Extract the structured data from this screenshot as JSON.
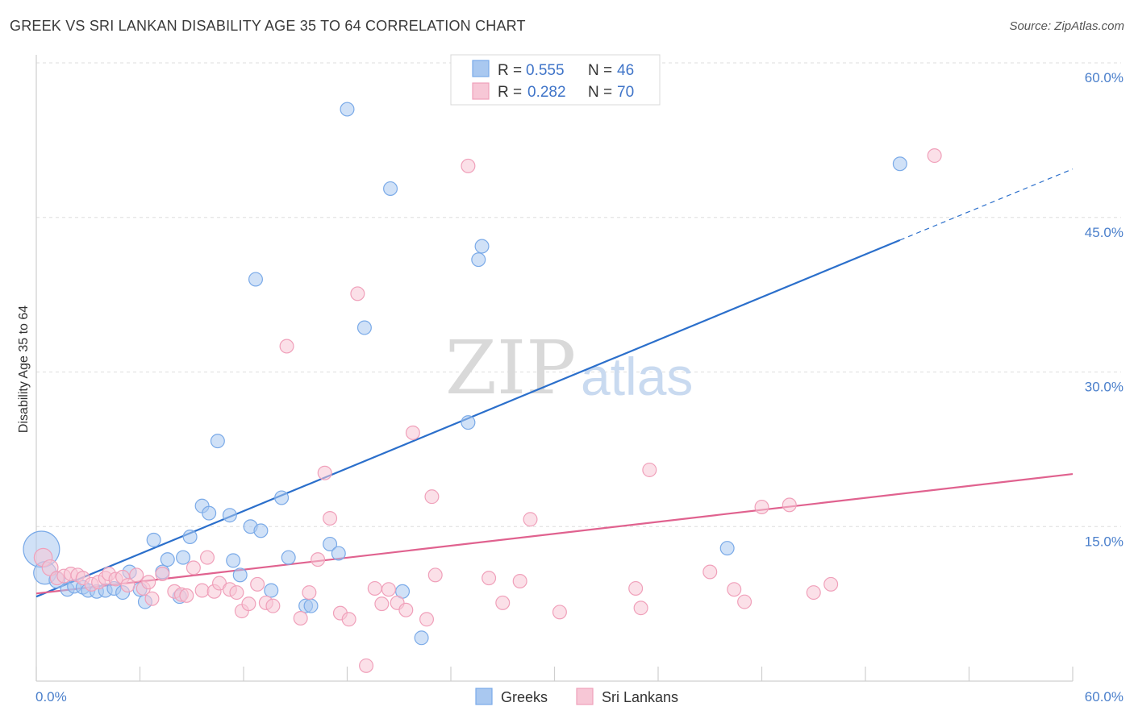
{
  "title": "GREEK VS SRI LANKAN DISABILITY AGE 35 TO 64 CORRELATION CHART",
  "source": "Source: ZipAtlas.com",
  "watermark": {
    "zip": "ZIP",
    "atlas": "atlas"
  },
  "chart_data": {
    "type": "scatter",
    "ylabel": "Disability Age 35 to 64",
    "xlim": [
      0,
      60
    ],
    "ylim": [
      0,
      60
    ],
    "x_tick_labels": [
      "0.0%",
      "60.0%"
    ],
    "y_ticks": [
      {
        "value": 15,
        "label": "15.0%"
      },
      {
        "value": 30,
        "label": "30.0%"
      },
      {
        "value": 45,
        "label": "45.0%"
      },
      {
        "value": 60,
        "label": "60.0%"
      }
    ],
    "grid": "dashed horizontal",
    "legend": {
      "placement": "top-center",
      "rows": [
        {
          "r_label": "R = ",
          "r_value": "0.555",
          "n_label": "N = ",
          "n_value": "46"
        },
        {
          "r_label": "R = ",
          "r_value": "0.282",
          "n_label": "N = ",
          "n_value": "70"
        }
      ]
    },
    "series": [
      {
        "name": "Greeks",
        "color": "#7aaae8",
        "fill": "#a9c8f0",
        "line_color": "#2b6fcb",
        "trend": {
          "x0": 0,
          "y0": 8.2,
          "x1": 50,
          "y1": 42.8,
          "dash_to_x": 60,
          "dash_to_y": 49.7
        },
        "points": [
          [
            0.3,
            12.8,
            32
          ],
          [
            0.5,
            10.5,
            20
          ],
          [
            1.2,
            9.8,
            14
          ],
          [
            1.8,
            8.9,
            12
          ],
          [
            2.2,
            9.2,
            12
          ],
          [
            2.7,
            9.1,
            12
          ],
          [
            3.0,
            8.8,
            12
          ],
          [
            3.5,
            8.7,
            12
          ],
          [
            4.0,
            8.8,
            12
          ],
          [
            4.5,
            9.0,
            12
          ],
          [
            5.0,
            8.6,
            12
          ],
          [
            5.4,
            10.6,
            12
          ],
          [
            6.0,
            8.9,
            12
          ],
          [
            6.3,
            7.7,
            12
          ],
          [
            6.8,
            13.7,
            12
          ],
          [
            7.3,
            10.6,
            12
          ],
          [
            7.6,
            11.8,
            12
          ],
          [
            8.3,
            8.2,
            12
          ],
          [
            8.5,
            12.0,
            12
          ],
          [
            8.9,
            14.0,
            12
          ],
          [
            9.6,
            17.0,
            12
          ],
          [
            10.0,
            16.3,
            12
          ],
          [
            10.5,
            23.3,
            12
          ],
          [
            11.2,
            16.1,
            12
          ],
          [
            11.4,
            11.7,
            12
          ],
          [
            11.8,
            10.3,
            12
          ],
          [
            12.4,
            15.0,
            12
          ],
          [
            12.7,
            39.0,
            12
          ],
          [
            13.0,
            14.6,
            12
          ],
          [
            13.6,
            8.8,
            12
          ],
          [
            14.2,
            17.8,
            12
          ],
          [
            14.6,
            12.0,
            12
          ],
          [
            15.6,
            7.3,
            12
          ],
          [
            15.9,
            7.3,
            12
          ],
          [
            17.0,
            13.3,
            12
          ],
          [
            17.5,
            12.4,
            12
          ],
          [
            18.0,
            55.5,
            12
          ],
          [
            19.0,
            34.3,
            12
          ],
          [
            20.5,
            47.8,
            12
          ],
          [
            21.2,
            8.7,
            12
          ],
          [
            22.3,
            4.2,
            12
          ],
          [
            25.0,
            25.1,
            12
          ],
          [
            25.6,
            40.9,
            12
          ],
          [
            25.8,
            42.2,
            12
          ],
          [
            40.0,
            12.9,
            12
          ],
          [
            50.0,
            50.2,
            12
          ]
        ]
      },
      {
        "name": "Sri Lankans",
        "color": "#f0a0ba",
        "fill": "#f7c7d6",
        "line_color": "#e0628f",
        "trend": {
          "x0": 0,
          "y0": 8.5,
          "x1": 60,
          "y1": 20.1
        },
        "points": [
          [
            0.4,
            12.0,
            16
          ],
          [
            0.8,
            11.0,
            14
          ],
          [
            1.2,
            10.0,
            12
          ],
          [
            1.6,
            10.2,
            12
          ],
          [
            2.0,
            10.4,
            12
          ],
          [
            2.4,
            10.3,
            12
          ],
          [
            2.7,
            10.0,
            12
          ],
          [
            3.2,
            9.4,
            12
          ],
          [
            3.6,
            9.6,
            12
          ],
          [
            4.0,
            10.0,
            12
          ],
          [
            4.2,
            10.4,
            12
          ],
          [
            4.6,
            9.9,
            12
          ],
          [
            5.0,
            10.1,
            12
          ],
          [
            5.3,
            9.3,
            12
          ],
          [
            5.8,
            10.3,
            12
          ],
          [
            6.2,
            9.0,
            12
          ],
          [
            6.5,
            9.6,
            12
          ],
          [
            6.7,
            8.0,
            12
          ],
          [
            7.3,
            10.4,
            12
          ],
          [
            8.0,
            8.7,
            12
          ],
          [
            8.4,
            8.4,
            12
          ],
          [
            8.7,
            8.3,
            12
          ],
          [
            9.1,
            11.0,
            12
          ],
          [
            9.6,
            8.8,
            12
          ],
          [
            9.9,
            12.0,
            12
          ],
          [
            10.3,
            8.7,
            12
          ],
          [
            10.6,
            9.5,
            12
          ],
          [
            11.2,
            8.9,
            12
          ],
          [
            11.6,
            8.6,
            12
          ],
          [
            11.9,
            6.8,
            12
          ],
          [
            12.3,
            7.5,
            12
          ],
          [
            12.8,
            9.4,
            12
          ],
          [
            13.3,
            7.6,
            12
          ],
          [
            13.7,
            7.3,
            12
          ],
          [
            14.5,
            32.5,
            12
          ],
          [
            15.3,
            6.1,
            12
          ],
          [
            15.8,
            8.6,
            12
          ],
          [
            16.3,
            11.8,
            12
          ],
          [
            16.7,
            20.2,
            12
          ],
          [
            17.0,
            15.8,
            12
          ],
          [
            17.6,
            6.6,
            12
          ],
          [
            18.1,
            6.0,
            12
          ],
          [
            18.6,
            37.6,
            12
          ],
          [
            19.1,
            1.5,
            12
          ],
          [
            19.6,
            9.0,
            12
          ],
          [
            20.0,
            7.5,
            12
          ],
          [
            20.4,
            8.9,
            12
          ],
          [
            20.9,
            7.6,
            12
          ],
          [
            21.4,
            6.9,
            12
          ],
          [
            21.8,
            24.1,
            12
          ],
          [
            22.6,
            6.0,
            12
          ],
          [
            22.9,
            17.9,
            12
          ],
          [
            23.1,
            10.3,
            12
          ],
          [
            25.0,
            50.0,
            12
          ],
          [
            26.2,
            10.0,
            12
          ],
          [
            27.0,
            7.6,
            12
          ],
          [
            28.0,
            9.7,
            12
          ],
          [
            28.6,
            15.7,
            12
          ],
          [
            30.3,
            6.7,
            12
          ],
          [
            34.7,
            9.0,
            12
          ],
          [
            35.0,
            7.1,
            12
          ],
          [
            35.5,
            20.5,
            12
          ],
          [
            39.0,
            10.6,
            12
          ],
          [
            40.4,
            8.9,
            12
          ],
          [
            41.0,
            7.7,
            12
          ],
          [
            42.0,
            16.9,
            12
          ],
          [
            43.6,
            17.1,
            12
          ],
          [
            45.0,
            8.6,
            12
          ],
          [
            46.0,
            9.4,
            12
          ],
          [
            52.0,
            51.0,
            12
          ]
        ]
      }
    ]
  }
}
